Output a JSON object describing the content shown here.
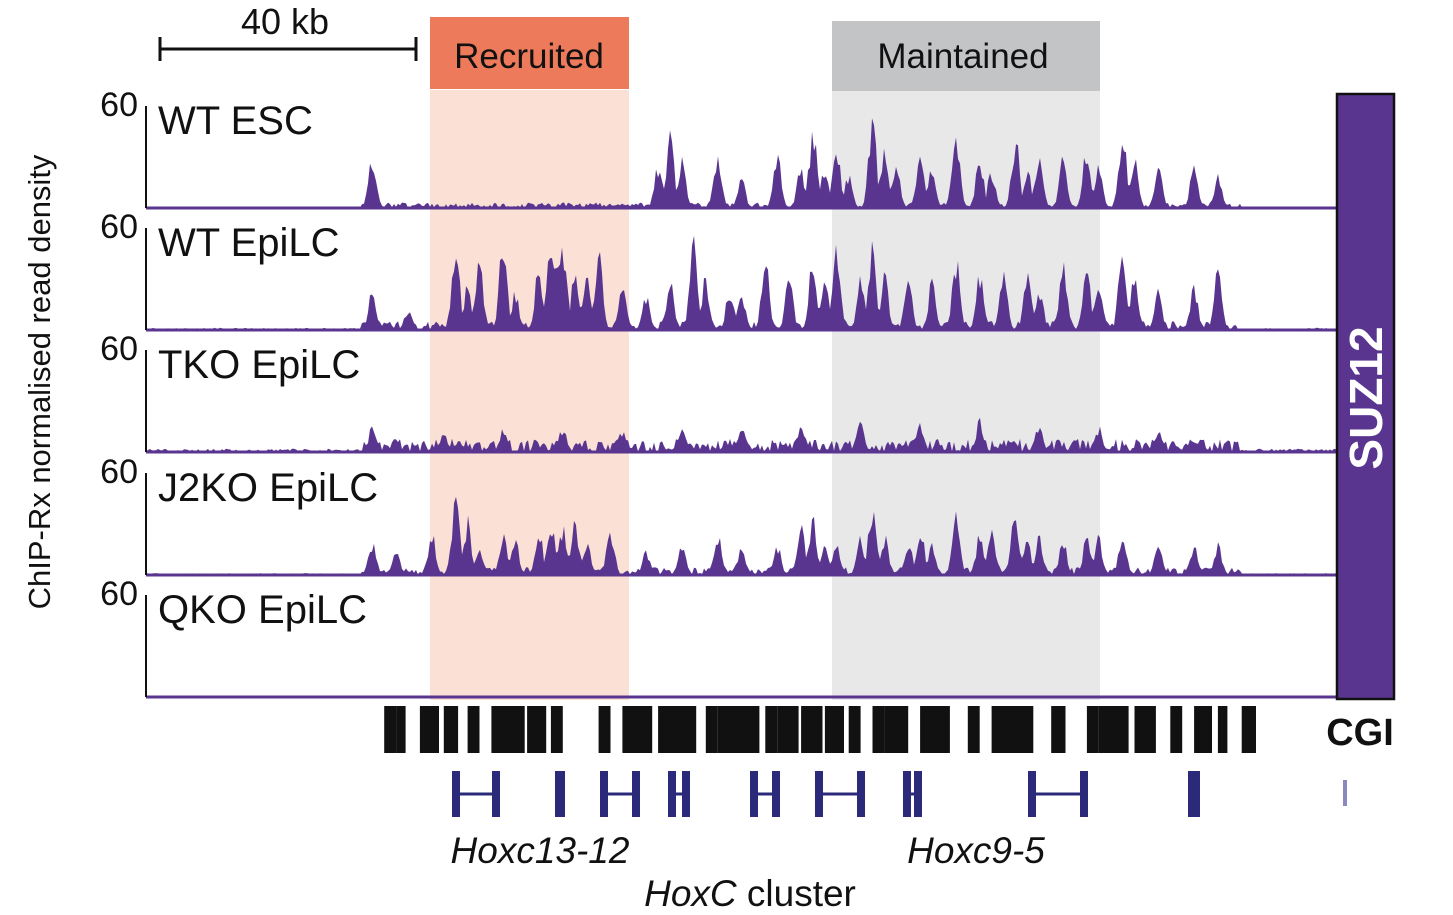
{
  "scale_bar": {
    "label": "40 kb"
  },
  "regions": [
    {
      "label": "Recruited",
      "header_color": "#ee7a5c",
      "band_color": "#fbe0d6"
    },
    {
      "label": "Maintained",
      "header_color": "#c3c4c5",
      "band_color": "#e8e8e9"
    }
  ],
  "y_axis_label": "ChIP-Rx normalised read density",
  "side_label": "SUZ12",
  "track_color": "#5a3590",
  "chart_data": {
    "type": "area",
    "ylim": [
      0,
      60
    ],
    "tracks": [
      {
        "name": "WT ESC",
        "max_label": "60",
        "peaks": [
          [
            0.19,
            0.55
          ],
          [
            0.43,
            0.45
          ],
          [
            0.44,
            0.78
          ],
          [
            0.45,
            0.5
          ],
          [
            0.48,
            0.6
          ],
          [
            0.5,
            0.3
          ],
          [
            0.53,
            0.55
          ],
          [
            0.55,
            0.42
          ],
          [
            0.56,
            0.82
          ],
          [
            0.57,
            0.45
          ],
          [
            0.58,
            0.62
          ],
          [
            0.59,
            0.35
          ],
          [
            0.61,
            0.95
          ],
          [
            0.62,
            0.55
          ],
          [
            0.63,
            0.45
          ],
          [
            0.65,
            0.62
          ],
          [
            0.66,
            0.4
          ],
          [
            0.68,
            0.82
          ],
          [
            0.7,
            0.5
          ],
          [
            0.71,
            0.4
          ],
          [
            0.73,
            0.72
          ],
          [
            0.74,
            0.4
          ],
          [
            0.75,
            0.55
          ],
          [
            0.77,
            0.52
          ],
          [
            0.79,
            0.62
          ],
          [
            0.8,
            0.42
          ],
          [
            0.82,
            0.85
          ],
          [
            0.83,
            0.5
          ],
          [
            0.85,
            0.42
          ],
          [
            0.88,
            0.45
          ],
          [
            0.9,
            0.35
          ]
        ],
        "noise": 0.05
      },
      {
        "name": "WT EpiLC",
        "max_label": "60",
        "peaks": [
          [
            0.19,
            0.45
          ],
          [
            0.22,
            0.2
          ],
          [
            0.26,
            0.95
          ],
          [
            0.27,
            0.45
          ],
          [
            0.28,
            0.75
          ],
          [
            0.3,
            0.95
          ],
          [
            0.31,
            0.4
          ],
          [
            0.33,
            0.65
          ],
          [
            0.34,
            0.85
          ],
          [
            0.345,
            0.7
          ],
          [
            0.35,
            0.95
          ],
          [
            0.36,
            0.6
          ],
          [
            0.37,
            0.55
          ],
          [
            0.38,
            0.82
          ],
          [
            0.4,
            0.5
          ],
          [
            0.42,
            0.35
          ],
          [
            0.44,
            0.5
          ],
          [
            0.46,
            0.95
          ],
          [
            0.47,
            0.55
          ],
          [
            0.49,
            0.4
          ],
          [
            0.5,
            0.4
          ],
          [
            0.52,
            0.8
          ],
          [
            0.54,
            0.55
          ],
          [
            0.56,
            0.72
          ],
          [
            0.57,
            0.6
          ],
          [
            0.58,
            0.82
          ],
          [
            0.6,
            0.52
          ],
          [
            0.61,
            0.9
          ],
          [
            0.62,
            0.6
          ],
          [
            0.64,
            0.5
          ],
          [
            0.66,
            0.5
          ],
          [
            0.68,
            0.75
          ],
          [
            0.7,
            0.55
          ],
          [
            0.72,
            0.55
          ],
          [
            0.74,
            0.6
          ],
          [
            0.75,
            0.45
          ],
          [
            0.77,
            0.7
          ],
          [
            0.79,
            0.62
          ],
          [
            0.8,
            0.55
          ],
          [
            0.82,
            0.92
          ],
          [
            0.83,
            0.55
          ],
          [
            0.85,
            0.4
          ],
          [
            0.88,
            0.45
          ],
          [
            0.9,
            0.58
          ]
        ],
        "noise": 0.08
      },
      {
        "name": "TKO EpiLC",
        "max_label": "60",
        "peaks": [
          [
            0.19,
            0.25
          ],
          [
            0.25,
            0.2
          ],
          [
            0.3,
            0.22
          ],
          [
            0.35,
            0.25
          ],
          [
            0.4,
            0.22
          ],
          [
            0.45,
            0.28
          ],
          [
            0.5,
            0.25
          ],
          [
            0.55,
            0.3
          ],
          [
            0.6,
            0.3
          ],
          [
            0.65,
            0.28
          ],
          [
            0.7,
            0.32
          ],
          [
            0.75,
            0.28
          ],
          [
            0.8,
            0.25
          ],
          [
            0.85,
            0.2
          ],
          [
            0.88,
            0.1
          ]
        ],
        "noise": 0.12
      },
      {
        "name": "J2KO EpiLC",
        "max_label": "60",
        "peaks": [
          [
            0.19,
            0.35
          ],
          [
            0.21,
            0.25
          ],
          [
            0.24,
            0.42
          ],
          [
            0.26,
            0.85
          ],
          [
            0.27,
            0.55
          ],
          [
            0.28,
            0.3
          ],
          [
            0.3,
            0.45
          ],
          [
            0.31,
            0.35
          ],
          [
            0.33,
            0.45
          ],
          [
            0.34,
            0.6
          ],
          [
            0.35,
            0.5
          ],
          [
            0.36,
            0.58
          ],
          [
            0.37,
            0.35
          ],
          [
            0.39,
            0.45
          ],
          [
            0.42,
            0.25
          ],
          [
            0.45,
            0.3
          ],
          [
            0.48,
            0.45
          ],
          [
            0.5,
            0.3
          ],
          [
            0.53,
            0.3
          ],
          [
            0.55,
            0.5
          ],
          [
            0.56,
            0.55
          ],
          [
            0.57,
            0.3
          ],
          [
            0.58,
            0.32
          ],
          [
            0.6,
            0.4
          ],
          [
            0.61,
            0.75
          ],
          [
            0.62,
            0.4
          ],
          [
            0.64,
            0.35
          ],
          [
            0.65,
            0.5
          ],
          [
            0.66,
            0.3
          ],
          [
            0.68,
            0.6
          ],
          [
            0.7,
            0.4
          ],
          [
            0.71,
            0.45
          ],
          [
            0.73,
            0.7
          ],
          [
            0.74,
            0.35
          ],
          [
            0.75,
            0.4
          ],
          [
            0.77,
            0.35
          ],
          [
            0.79,
            0.4
          ],
          [
            0.8,
            0.38
          ],
          [
            0.82,
            0.45
          ],
          [
            0.85,
            0.3
          ],
          [
            0.88,
            0.32
          ],
          [
            0.9,
            0.3
          ]
        ],
        "noise": 0.07
      },
      {
        "name": "QKO EpiLC",
        "max_label": "60",
        "peaks": [],
        "noise": 0.012
      }
    ],
    "cgi": {
      "label": "CGI",
      "blocks": [
        [
          0.2,
          0.01
        ],
        [
          0.21,
          0.008
        ],
        [
          0.23,
          0.016
        ],
        [
          0.25,
          0.012
        ],
        [
          0.27,
          0.01
        ],
        [
          0.29,
          0.028
        ],
        [
          0.32,
          0.016
        ],
        [
          0.34,
          0.01
        ],
        [
          0.38,
          0.01
        ],
        [
          0.4,
          0.025
        ],
        [
          0.43,
          0.032
        ],
        [
          0.47,
          0.01
        ],
        [
          0.48,
          0.035
        ],
        [
          0.52,
          0.01
        ],
        [
          0.53,
          0.018
        ],
        [
          0.55,
          0.018
        ],
        [
          0.57,
          0.016
        ],
        [
          0.59,
          0.01
        ],
        [
          0.61,
          0.01
        ],
        [
          0.62,
          0.02
        ],
        [
          0.65,
          0.025
        ],
        [
          0.69,
          0.01
        ],
        [
          0.71,
          0.01
        ],
        [
          0.72,
          0.025
        ],
        [
          0.76,
          0.012
        ],
        [
          0.79,
          0.01
        ],
        [
          0.8,
          0.025
        ],
        [
          0.83,
          0.018
        ],
        [
          0.86,
          0.01
        ],
        [
          0.88,
          0.015
        ],
        [
          0.9,
          0.008
        ],
        [
          0.92,
          0.012
        ]
      ]
    },
    "genes": {
      "labels": [
        "Hoxc13-12",
        "Hoxc9-5"
      ],
      "cluster_label_italic": "HoxC",
      "cluster_label_rest": " cluster"
    }
  }
}
